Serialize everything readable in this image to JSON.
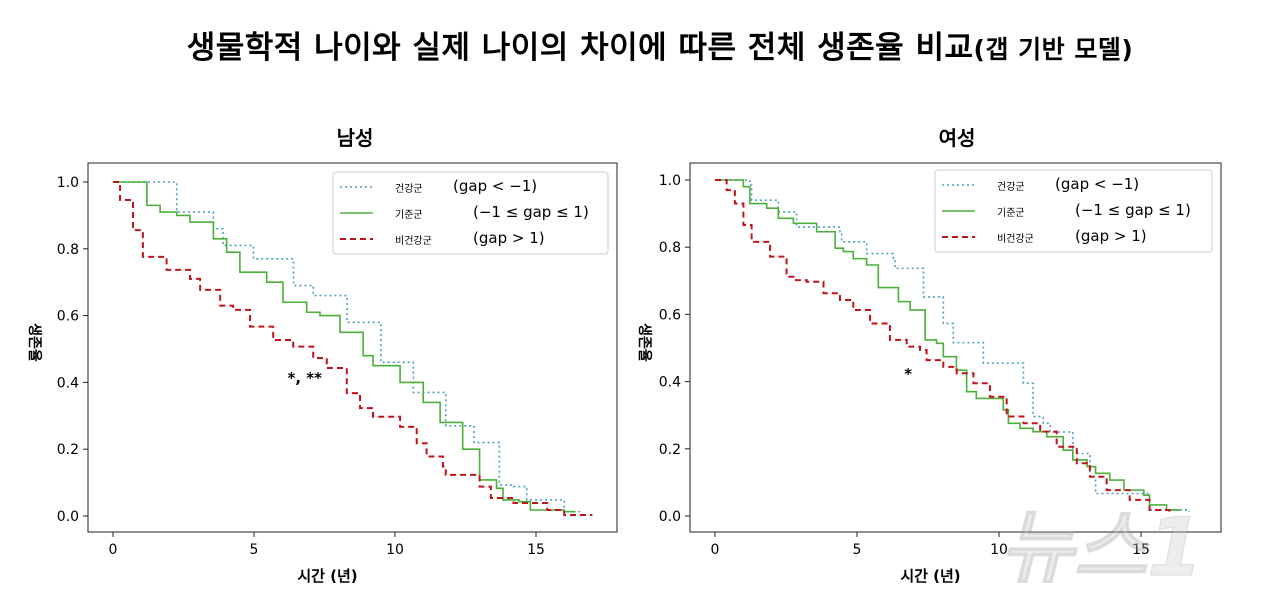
{
  "title": "생물학적 나이와 실제 나이의 차이에 따른 전체 생존율 비교",
  "title_suffix": "(갭 기반 모델)",
  "watermark": "뉴스1",
  "colors": {
    "healthy": "#4a9fc4",
    "reference": "#4caf3a",
    "unhealthy": "#c0141b"
  },
  "chart_data": [
    {
      "type": "line",
      "step": true,
      "title": "남성",
      "xlabel": "시간 (년)",
      "ylabel": "생존율",
      "xlim": [
        -0.8,
        17.9
      ],
      "ylim": [
        -0.05,
        1.05
      ],
      "xticks": [
        "0",
        "5",
        "10",
        "15"
      ],
      "yticks": [
        "0.0",
        "0.2",
        "0.4",
        "0.6",
        "0.8",
        "1.0"
      ],
      "grid": false,
      "legend_position": "top-right",
      "annotation": {
        "text": "*, **",
        "x": 6.8,
        "y": 0.41
      },
      "series": [
        {
          "name": "건강군",
          "condition": "(gap < −1)",
          "style": "dotted",
          "color_key": "healthy",
          "x": [
            0,
            2.26,
            3.56,
            3.9,
            4.98,
            6.4,
            7.1,
            8.3,
            9.5,
            10.65,
            11.8,
            12.8,
            13.7,
            14.2,
            14.67,
            16.0,
            16.6
          ],
          "y": [
            1.0,
            0.91,
            0.86,
            0.81,
            0.77,
            0.69,
            0.66,
            0.58,
            0.46,
            0.37,
            0.27,
            0.22,
            0.093,
            0.088,
            0.048,
            0.013,
            0.013
          ]
        },
        {
          "name": "기준군",
          "condition": "(−1 ≤ gap ≤ 1)",
          "style": "solid",
          "color_key": "reference",
          "x": [
            0,
            1.2,
            1.67,
            2.26,
            2.73,
            3.56,
            4.03,
            4.5,
            5.45,
            6.03,
            6.87,
            7.34,
            8.05,
            8.87,
            9.22,
            10.18,
            11.0,
            11.6,
            12.4,
            13.0,
            13.6,
            13.83,
            14.4,
            14.8,
            16.0,
            16.4
          ],
          "y": [
            1.0,
            0.93,
            0.91,
            0.9,
            0.88,
            0.83,
            0.79,
            0.73,
            0.7,
            0.64,
            0.61,
            0.6,
            0.55,
            0.48,
            0.45,
            0.4,
            0.34,
            0.28,
            0.2,
            0.108,
            0.083,
            0.048,
            0.043,
            0.018,
            0.013,
            0.013
          ]
        },
        {
          "name": "비건강군",
          "condition": "(gap > 1)",
          "style": "dashed",
          "color_key": "unhealthy",
          "x": [
            0,
            0.25,
            0.71,
            1.06,
            1.9,
            2.73,
            3.09,
            3.8,
            4.26,
            4.86,
            5.68,
            6.39,
            7.1,
            7.58,
            8.29,
            8.76,
            9.22,
            10.18,
            10.77,
            11.12,
            11.7,
            11.8,
            13.0,
            13.4,
            14.2,
            15.4,
            16.0,
            17.0
          ],
          "y": [
            1.0,
            0.946,
            0.856,
            0.776,
            0.737,
            0.71,
            0.677,
            0.63,
            0.617,
            0.567,
            0.527,
            0.507,
            0.473,
            0.443,
            0.368,
            0.323,
            0.297,
            0.267,
            0.218,
            0.178,
            0.148,
            0.123,
            0.088,
            0.054,
            0.039,
            0.018,
            0.003,
            0.003
          ]
        }
      ]
    },
    {
      "type": "line",
      "step": true,
      "title": "여성",
      "xlabel": "시간 (년)",
      "ylabel": "생존율",
      "xlim": [
        -0.9,
        17.8
      ],
      "ylim": [
        -0.05,
        1.05
      ],
      "xticks": [
        "0",
        "5",
        "10",
        "15"
      ],
      "yticks": [
        "0.0",
        "0.2",
        "0.4",
        "0.6",
        "0.8",
        "1.0"
      ],
      "grid": false,
      "legend_position": "top-right",
      "annotation": {
        "text": "*",
        "x": 6.8,
        "y": 0.42
      },
      "series": [
        {
          "name": "건강군",
          "condition": "(gap < −1)",
          "style": "dotted",
          "color_key": "healthy",
          "x": [
            0,
            1.23,
            1.29,
            2.23,
            2.87,
            4.4,
            4.46,
            5.34,
            6.28,
            6.34,
            7.34,
            8.04,
            8.39,
            9.45,
            10.86,
            11.2,
            11.56,
            11.8,
            12.6,
            13.2,
            13.4,
            15.3,
            16.7
          ],
          "y": [
            1.0,
            0.985,
            0.94,
            0.905,
            0.86,
            0.846,
            0.816,
            0.781,
            0.766,
            0.737,
            0.652,
            0.573,
            0.516,
            0.455,
            0.395,
            0.296,
            0.276,
            0.25,
            0.186,
            0.117,
            0.067,
            0.018,
            0.013
          ]
        },
        {
          "name": "기준군",
          "condition": "(−1 ≤ gap ≤ 1)",
          "style": "solid",
          "color_key": "reference",
          "x": [
            0,
            0.76,
            1.0,
            1.23,
            1.82,
            2.23,
            2.76,
            3.58,
            4.23,
            4.52,
            4.87,
            5.34,
            5.75,
            6.46,
            6.87,
            7.4,
            7.8,
            8.04,
            8.5,
            8.86,
            9.2,
            10.15,
            10.33,
            10.74,
            11.2,
            11.68,
            12.26,
            12.6,
            13.1,
            13.4,
            13.9,
            14.4,
            15.1,
            15.3,
            15.9,
            16.4
          ],
          "y": [
            1.0,
            1.0,
            0.98,
            0.93,
            0.916,
            0.886,
            0.871,
            0.846,
            0.797,
            0.787,
            0.766,
            0.747,
            0.68,
            0.638,
            0.613,
            0.524,
            0.514,
            0.474,
            0.434,
            0.37,
            0.35,
            0.316,
            0.276,
            0.261,
            0.251,
            0.236,
            0.196,
            0.167,
            0.147,
            0.127,
            0.107,
            0.077,
            0.062,
            0.033,
            0.018,
            0.018
          ]
        },
        {
          "name": "비건강군",
          "condition": "(gap > 1)",
          "style": "dashed",
          "color_key": "unhealthy",
          "x": [
            0,
            0.41,
            0.7,
            1.0,
            1.29,
            1.94,
            2.52,
            2.76,
            3.23,
            3.82,
            4.4,
            4.87,
            5.46,
            6.16,
            6.75,
            7.22,
            7.45,
            8.04,
            8.51,
            9.1,
            9.68,
            10.27,
            10.86,
            11.45,
            12.03,
            12.74,
            13.2,
            13.79,
            14.6,
            15.3,
            16.0
          ],
          "y": [
            1.0,
            0.97,
            0.93,
            0.866,
            0.816,
            0.772,
            0.712,
            0.702,
            0.697,
            0.663,
            0.643,
            0.613,
            0.573,
            0.524,
            0.504,
            0.494,
            0.464,
            0.444,
            0.425,
            0.395,
            0.355,
            0.296,
            0.276,
            0.251,
            0.206,
            0.157,
            0.117,
            0.077,
            0.048,
            0.018,
            0.003
          ]
        }
      ]
    }
  ]
}
